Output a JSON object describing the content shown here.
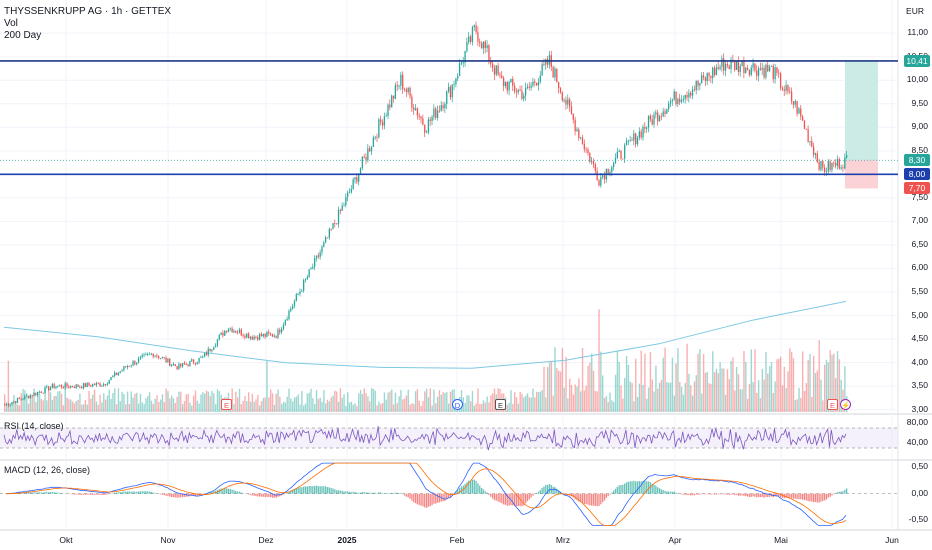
{
  "header": {
    "symbol_line": "THYSSENKRUPP AG · 1h · GETTEX",
    "vol_label": "Vol",
    "ma_label": "200 Day",
    "currency": "EUR"
  },
  "colors": {
    "up": "#26a69a",
    "down": "#ef5350",
    "level_line": "#1e3a8a",
    "ma_line": "#7ec8e3",
    "rsi_line": "#7e57c2",
    "macd_line": "#2962ff",
    "signal_line": "#ff6d00",
    "target_zone": "#cdebe6",
    "stop_zone": "#fbd2d5"
  },
  "price_axis": {
    "labels": [
      "11,00",
      "10,50",
      "10,00",
      "9,50",
      "9,00",
      "8,50",
      "8,00",
      "7,50",
      "7,00",
      "6,50",
      "6,00",
      "5,50",
      "5,00",
      "4,50",
      "4,00",
      "3,50",
      "3,00"
    ],
    "values": [
      11.0,
      10.5,
      10.0,
      9.5,
      9.0,
      8.5,
      8.0,
      7.5,
      7.0,
      6.5,
      6.0,
      5.5,
      5.0,
      4.5,
      4.0,
      3.5,
      3.0
    ],
    "range": [
      2.95,
      11.45
    ]
  },
  "levels": {
    "resistance": {
      "value": 10.41,
      "label": "10,41"
    },
    "support": {
      "value": 8.0,
      "label": "8,00"
    },
    "last_price": {
      "value": 8.3,
      "label": "8,30"
    },
    "stop": {
      "value": 7.7,
      "label": "7,70"
    }
  },
  "rsi": {
    "title": "RSI (14, close)",
    "axis_labels": [
      "80,00",
      "40,00"
    ],
    "axis_values": [
      80,
      40
    ],
    "upper_band": 70,
    "lower_band": 30,
    "range": [
      10,
      90
    ]
  },
  "macd": {
    "title": "MACD (12, 26, close)",
    "axis_labels": [
      "0,50",
      "0,00",
      "-0,50"
    ],
    "axis_values": [
      0.5,
      0.0,
      -0.5
    ],
    "range": [
      -0.65,
      0.6
    ]
  },
  "time_axis": {
    "labels": [
      "Okt",
      "Nov",
      "Dez",
      "2025",
      "Feb",
      "Mrz",
      "Apr",
      "Mai",
      "Jun"
    ],
    "bold": [
      false,
      false,
      false,
      true,
      false,
      false,
      false,
      false,
      false
    ]
  },
  "event_markers": [
    {
      "symbol": "E",
      "kind": "earnings"
    },
    {
      "symbol": "D",
      "kind": "dividend"
    },
    {
      "symbol": "E",
      "kind": "earnings"
    },
    {
      "symbol": "E",
      "kind": "earnings"
    },
    {
      "symbol": "⚡",
      "kind": "event"
    }
  ],
  "chart_data": {
    "type": "line",
    "title": "THYSSENKRUPP AG · 1h · GETTEX",
    "ylabel": "EUR",
    "ylim": [
      2.95,
      11.45
    ],
    "series": [
      {
        "name": "THYSSENKRUPP AG",
        "x": [
          "Sep-25",
          "Okt",
          "Okt-15",
          "Nov",
          "Nov-15",
          "Dez",
          "Dez-15",
          "2025",
          "Jan-15",
          "Jan-25",
          "Feb",
          "Feb-10",
          "Feb-15",
          "Feb-20",
          "Feb-25",
          "Mrz",
          "Mrz-05",
          "Mrz-10",
          "Mrz-15",
          "Mrz-18",
          "Mrz-22",
          "Mrz-28",
          "Apr",
          "Apr-04",
          "Apr-07",
          "Apr-10",
          "Apr-15",
          "Apr-20",
          "Apr-25",
          "Mai",
          "Mai-05",
          "Mai-10",
          "Mai-12",
          "Mai-15",
          "Mai-18"
        ],
        "values": [
          3.1,
          3.3,
          3.5,
          3.5,
          3.55,
          3.95,
          4.2,
          3.9,
          4.1,
          4.75,
          4.55,
          4.6,
          5.6,
          6.6,
          7.7,
          8.9,
          10.0,
          9.0,
          9.8,
          11.1,
          10.0,
          9.7,
          10.4,
          9.1,
          7.9,
          8.5,
          9.1,
          9.6,
          9.9,
          10.35,
          10.3,
          10.2,
          9.4,
          8.1,
          8.3
        ]
      },
      {
        "name": "200 Day",
        "x": [
          "Sep-25",
          "Okt",
          "Nov",
          "Dez",
          "2025",
          "Feb",
          "Mrz",
          "Apr",
          "Mai",
          "Mai-18"
        ],
        "values": [
          4.75,
          4.55,
          4.25,
          4.0,
          3.9,
          3.88,
          4.05,
          4.4,
          4.9,
          5.3
        ]
      }
    ]
  }
}
